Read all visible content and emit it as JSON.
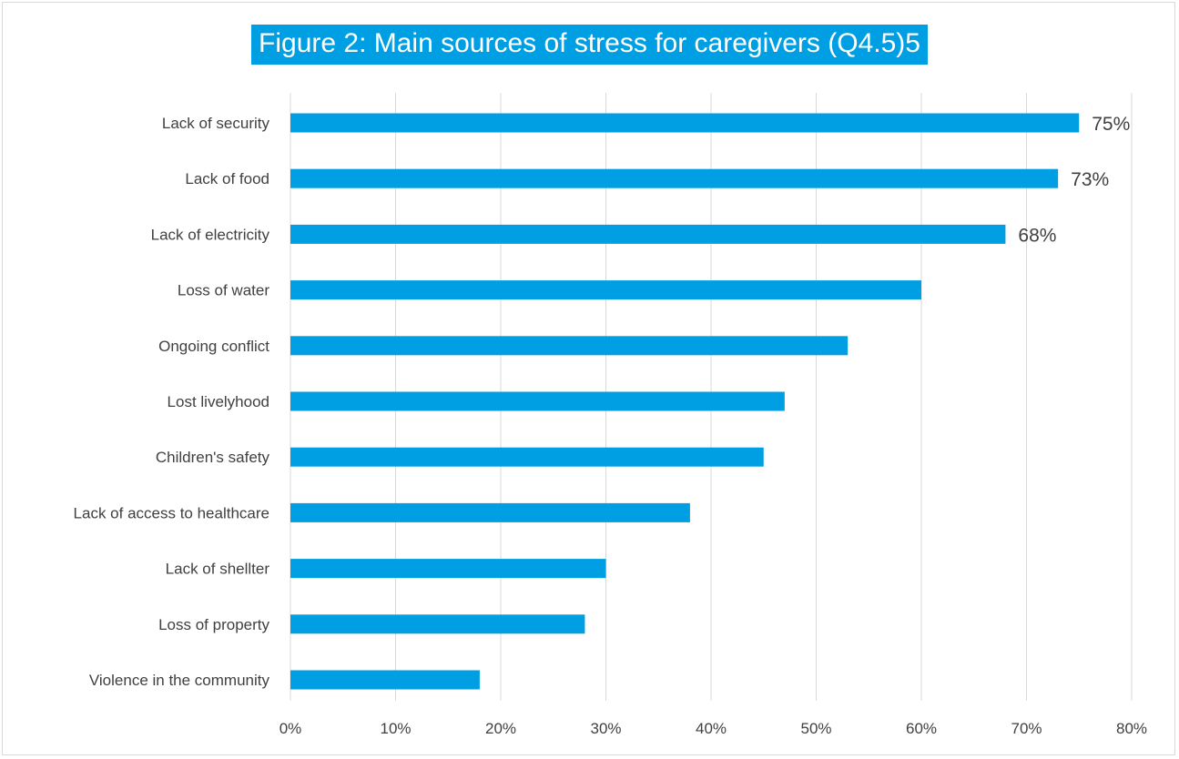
{
  "chart_data": {
    "type": "bar",
    "orientation": "horizontal",
    "title": "Figure 2: Main sources of stress for caregivers (Q4.5)5",
    "categories": [
      "Lack of security",
      "Lack of food",
      "Lack of electricity",
      "Loss of water",
      "Ongoing conflict",
      "Lost livelyhood",
      "Children's safety",
      "Lack of access to healthcare",
      "Lack of shellter",
      "Loss of property",
      "Violence in the community"
    ],
    "values": [
      75,
      73,
      68,
      60,
      53,
      47,
      45,
      38,
      30,
      28,
      18
    ],
    "data_labels": [
      "75%",
      "73%",
      "68%",
      "",
      "",
      "",
      "",
      "",
      "",
      "",
      ""
    ],
    "xlim": [
      0,
      80
    ],
    "x_ticks": [
      "0%",
      "10%",
      "20%",
      "30%",
      "40%",
      "50%",
      "60%",
      "70%",
      "80%"
    ],
    "grid": "vertical",
    "legend": "none",
    "bar_color": "#009fe3",
    "grid_color": "#d9d9d9"
  }
}
